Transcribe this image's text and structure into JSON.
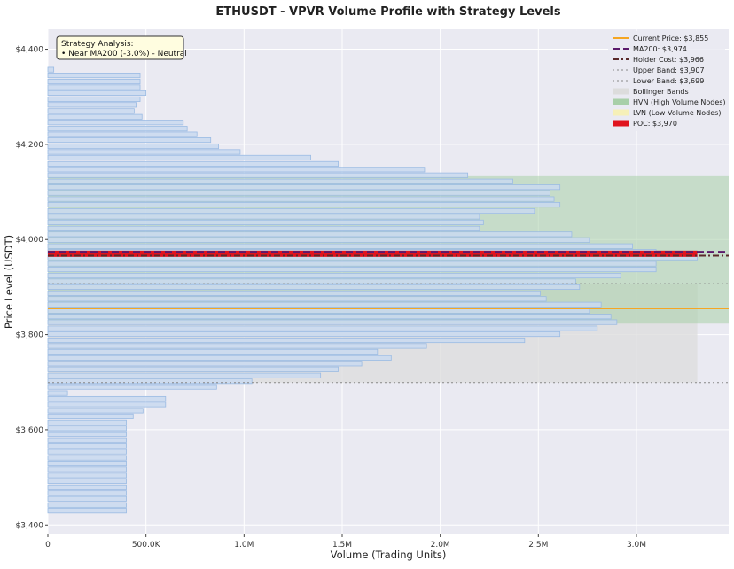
{
  "chart_data": {
    "type": "bar",
    "orientation": "horizontal",
    "title": "ETHUSDT - VPVR Volume Profile with Strategy Levels",
    "xlabel": "Volume (Trading Units)",
    "ylabel": "Price Level (USDT)",
    "xlim": [
      0,
      3470000
    ],
    "ylim": [
      3380,
      4442
    ],
    "x_ticks": [
      {
        "value": 0,
        "label": "0"
      },
      {
        "value": 500000,
        "label": "500.0K"
      },
      {
        "value": 1000000,
        "label": "1.0M"
      },
      {
        "value": 1500000,
        "label": "1.5M"
      },
      {
        "value": 2000000,
        "label": "2.0M"
      },
      {
        "value": 2500000,
        "label": "2.5M"
      },
      {
        "value": 3000000,
        "label": "3.0M"
      }
    ],
    "y_ticks": [
      {
        "value": 3400,
        "label": "$3,400"
      },
      {
        "value": 3600,
        "label": "$3,600"
      },
      {
        "value": 3800,
        "label": "$3,800"
      },
      {
        "value": 4000,
        "label": "$4,000"
      },
      {
        "value": 4200,
        "label": "$4,200"
      },
      {
        "value": 4400,
        "label": "$4,400"
      }
    ],
    "bin_size": 12.37,
    "bins": [
      {
        "price": 3430,
        "volume": 400000
      },
      {
        "price": 3442,
        "volume": 400000
      },
      {
        "price": 3455,
        "volume": 400000
      },
      {
        "price": 3467,
        "volume": 400000
      },
      {
        "price": 3479,
        "volume": 400000
      },
      {
        "price": 3492,
        "volume": 400000
      },
      {
        "price": 3504,
        "volume": 400000
      },
      {
        "price": 3517,
        "volume": 400000
      },
      {
        "price": 3529,
        "volume": 400000
      },
      {
        "price": 3541,
        "volume": 400000
      },
      {
        "price": 3554,
        "volume": 400000
      },
      {
        "price": 3566,
        "volume": 400000
      },
      {
        "price": 3578,
        "volume": 400000
      },
      {
        "price": 3591,
        "volume": 400000
      },
      {
        "price": 3603,
        "volume": 400000
      },
      {
        "price": 3615,
        "volume": 400000
      },
      {
        "price": 3628,
        "volume": 435000
      },
      {
        "price": 3640,
        "volume": 485000
      },
      {
        "price": 3653,
        "volume": 600000
      },
      {
        "price": 3665,
        "volume": 600000
      },
      {
        "price": 3677,
        "volume": 100000
      },
      {
        "price": 3690,
        "volume": 860000
      },
      {
        "price": 3702,
        "volume": 1040000
      },
      {
        "price": 3714,
        "volume": 1390000
      },
      {
        "price": 3727,
        "volume": 1480000
      },
      {
        "price": 3739,
        "volume": 1600000
      },
      {
        "price": 3751,
        "volume": 1750000
      },
      {
        "price": 3764,
        "volume": 1680000
      },
      {
        "price": 3776,
        "volume": 1930000
      },
      {
        "price": 3788,
        "volume": 2430000
      },
      {
        "price": 3801,
        "volume": 2610000
      },
      {
        "price": 3813,
        "volume": 2800000
      },
      {
        "price": 3826,
        "volume": 2900000
      },
      {
        "price": 3838,
        "volume": 2870000
      },
      {
        "price": 3850,
        "volume": 2760000
      },
      {
        "price": 3863,
        "volume": 2820000
      },
      {
        "price": 3875,
        "volume": 2540000
      },
      {
        "price": 3887,
        "volume": 2510000
      },
      {
        "price": 3900,
        "volume": 2710000
      },
      {
        "price": 3912,
        "volume": 2690000
      },
      {
        "price": 3924,
        "volume": 2920000
      },
      {
        "price": 3937,
        "volume": 3100000
      },
      {
        "price": 3949,
        "volume": 3100000
      },
      {
        "price": 3962,
        "volume": 3310000
      },
      {
        "price": 3974,
        "volume": 3100000
      },
      {
        "price": 3986,
        "volume": 2980000
      },
      {
        "price": 3999,
        "volume": 2760000
      },
      {
        "price": 4011,
        "volume": 2670000
      },
      {
        "price": 4023,
        "volume": 2200000
      },
      {
        "price": 4036,
        "volume": 2220000
      },
      {
        "price": 4048,
        "volume": 2200000
      },
      {
        "price": 4060,
        "volume": 2480000
      },
      {
        "price": 4073,
        "volume": 2610000
      },
      {
        "price": 4085,
        "volume": 2580000
      },
      {
        "price": 4098,
        "volume": 2560000
      },
      {
        "price": 4110,
        "volume": 2610000
      },
      {
        "price": 4122,
        "volume": 2370000
      },
      {
        "price": 4135,
        "volume": 2140000
      },
      {
        "price": 4147,
        "volume": 1920000
      },
      {
        "price": 4159,
        "volume": 1480000
      },
      {
        "price": 4172,
        "volume": 1340000
      },
      {
        "price": 4184,
        "volume": 980000
      },
      {
        "price": 4196,
        "volume": 870000
      },
      {
        "price": 4209,
        "volume": 830000
      },
      {
        "price": 4221,
        "volume": 760000
      },
      {
        "price": 4233,
        "volume": 710000
      },
      {
        "price": 4246,
        "volume": 690000
      },
      {
        "price": 4258,
        "volume": 480000
      },
      {
        "price": 4270,
        "volume": 440000
      },
      {
        "price": 4283,
        "volume": 450000
      },
      {
        "price": 4295,
        "volume": 470000
      },
      {
        "price": 4308,
        "volume": 500000
      },
      {
        "price": 4320,
        "volume": 470000
      },
      {
        "price": 4332,
        "volume": 470000
      },
      {
        "price": 4345,
        "volume": 470000
      },
      {
        "price": 4357,
        "volume": 30000
      }
    ],
    "levels": [
      {
        "name": "Current Price",
        "label": "Current Price: $3,855",
        "price": 3855,
        "color": "#f5a623",
        "style": "solid"
      },
      {
        "name": "MA200",
        "label": "MA200: $3,974",
        "price": 3974,
        "color": "#5b1a6b",
        "style": "dashed"
      },
      {
        "name": "Holder Cost",
        "label": "Holder Cost: $3,966",
        "price": 3966,
        "color": "#5a2a2a",
        "style": "dashdot"
      },
      {
        "name": "Upper Band",
        "label": "Upper Band: $3,907",
        "price": 3907,
        "color": "#888888",
        "style": "dotted"
      },
      {
        "name": "Lower Band",
        "label": "Lower Band: $3,699",
        "price": 3699,
        "color": "#888888",
        "style": "dotted"
      }
    ],
    "zones": {
      "bollinger": {
        "label": "Bollinger Bands",
        "from": 3699,
        "to": 3907,
        "color": "#dcdcdc"
      },
      "hvn": {
        "label": "HVN (High Volume Nodes)",
        "from": 3823,
        "to": 4133,
        "color": "#a8cfa8"
      },
      "lvn": {
        "label": "LVN (Low Volume Nodes)",
        "color": "#f6f0b8"
      },
      "poc": {
        "label": "POC: $3,970",
        "price": 3970,
        "color": "#e0141e"
      }
    },
    "legend_position": "top-right",
    "colors": {
      "bar_fill": "#c9d9f0",
      "bar_stroke": "#9bbbe3",
      "plot_bg": "#eaeaf2",
      "grid": "#ffffff"
    }
  },
  "annotation": {
    "title": "Strategy Analysis:",
    "line": "• Near MA200 (-3.0%) - Neutral"
  }
}
